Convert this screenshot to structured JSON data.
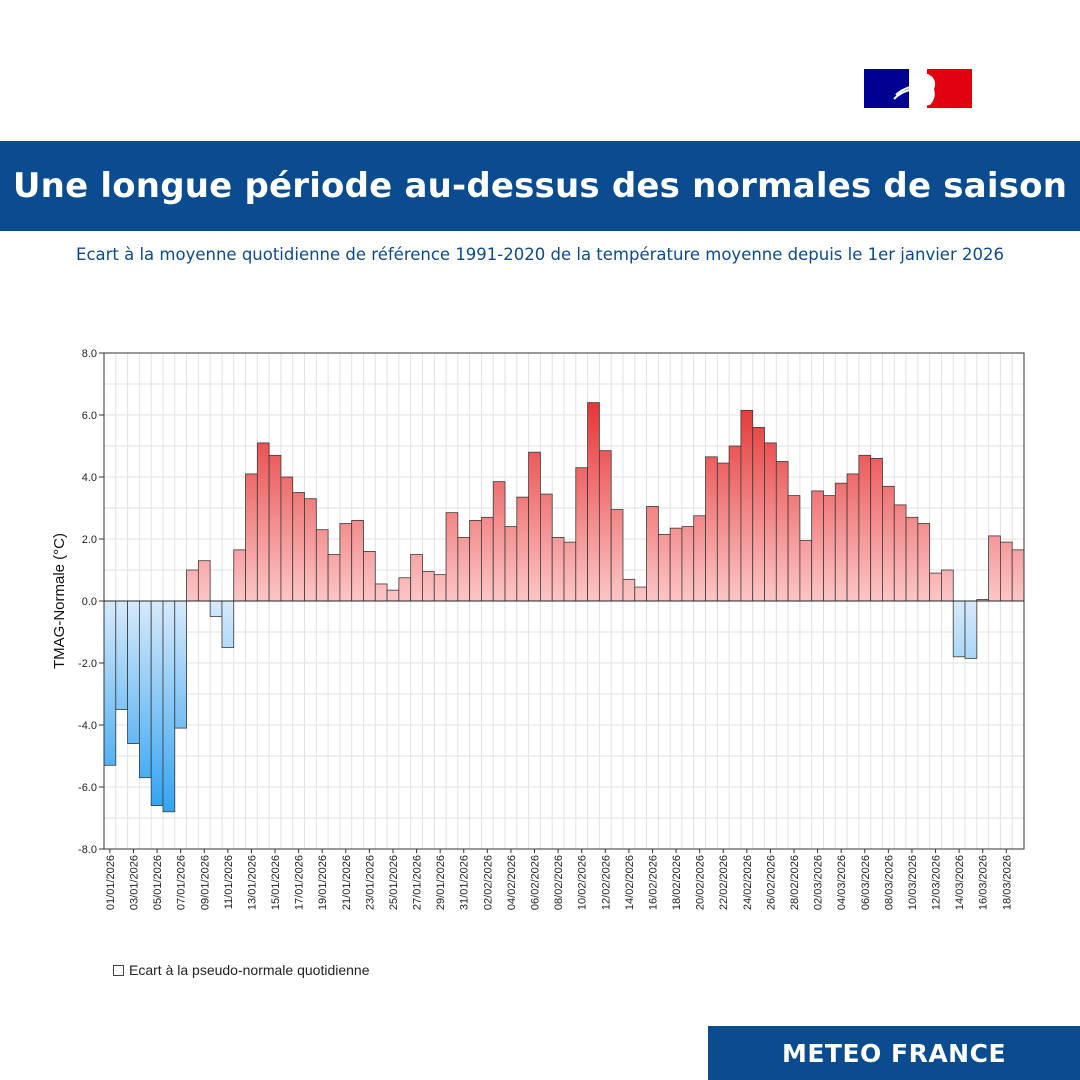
{
  "header": {
    "title": "Une longue période au-dessus des normales de saison",
    "subtitle": "Ecart à la moyenne quotidienne de référence 1991-2020 de la température moyenne depuis le 1er janvier 2026"
  },
  "legend": {
    "label": "Ecart à la pseudo-normale quotidienne"
  },
  "footer": {
    "brand": "METEO FRANCE"
  },
  "colors": {
    "band": "#0a4c8f",
    "positive_light": "#fcc6c6",
    "positive_dark": "#e63434",
    "negative_light": "#d7eafa",
    "negative_dark": "#35a4f2"
  },
  "chart_data": {
    "type": "bar",
    "title": "",
    "xlabel": "",
    "ylabel": "TMAG-Normale (°C)",
    "ylim": [
      -8,
      8
    ],
    "yticks": [
      "8.0",
      "6.0",
      "4.0",
      "2.0",
      "0.0",
      "-2.0",
      "-4.0",
      "-6.0",
      "-8.0"
    ],
    "grid": true,
    "x_start": "01/01/2026",
    "x_tick_labels": [
      "01/01/2026",
      "03/01/2026",
      "05/01/2026",
      "07/01/2026",
      "09/01/2026",
      "11/01/2026",
      "13/01/2026",
      "15/01/2026",
      "17/01/2026",
      "19/01/2026",
      "21/01/2026",
      "23/01/2026",
      "25/01/2026",
      "27/01/2026",
      "29/01/2026",
      "31/01/2026",
      "02/02/2026",
      "04/02/2026",
      "06/02/2026",
      "08/02/2026",
      "10/02/2026",
      "12/02/2026",
      "14/02/2026",
      "16/02/2026",
      "18/02/2026",
      "20/02/2026",
      "22/02/2026",
      "24/02/2026",
      "26/02/2026",
      "28/02/2026",
      "02/03/2026",
      "04/03/2026",
      "06/03/2026",
      "08/03/2026",
      "10/03/2026",
      "12/03/2026",
      "14/03/2026",
      "16/03/2026",
      "18/03/2026"
    ],
    "values": [
      -5.3,
      -3.5,
      -4.6,
      -5.7,
      -6.6,
      -6.8,
      -4.1,
      1.0,
      1.3,
      -0.5,
      -1.5,
      1.65,
      4.1,
      5.1,
      4.7,
      4.0,
      3.5,
      3.3,
      2.3,
      1.5,
      2.5,
      2.6,
      1.6,
      0.55,
      0.35,
      0.75,
      1.5,
      0.95,
      0.85,
      2.85,
      2.05,
      2.6,
      2.7,
      3.85,
      2.4,
      3.35,
      4.8,
      3.45,
      2.05,
      1.9,
      4.3,
      6.4,
      4.85,
      2.95,
      0.7,
      0.45,
      3.05,
      2.15,
      2.35,
      2.4,
      2.75,
      4.65,
      4.45,
      5.0,
      6.15,
      5.6,
      5.1,
      4.5,
      3.4,
      1.95,
      3.55,
      3.4,
      3.8,
      4.1,
      4.7,
      4.6,
      3.7,
      3.1,
      2.7,
      2.5,
      0.9,
      1.0,
      -1.8,
      -1.85,
      0.05,
      2.1,
      1.9,
      1.65
    ]
  }
}
